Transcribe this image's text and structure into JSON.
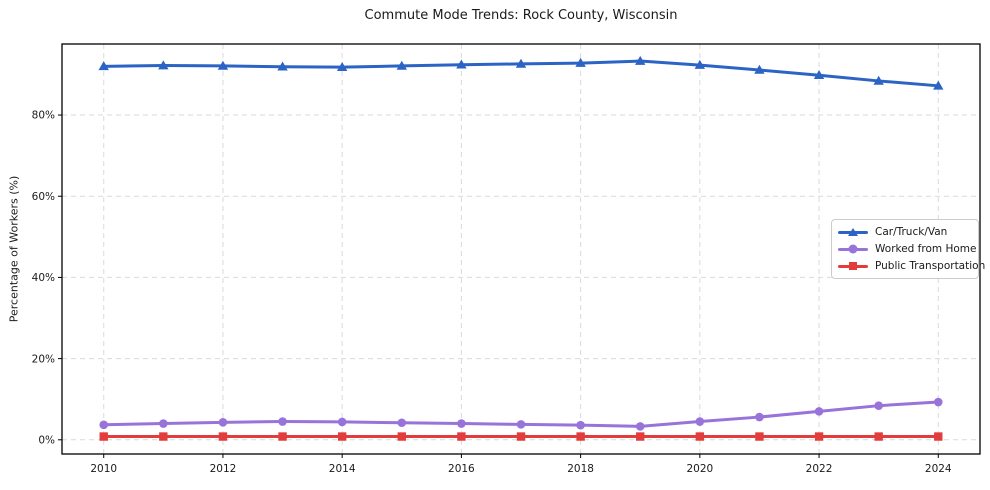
{
  "figure": {
    "title": "Commute Mode Trends: Rock County, Wisconsin",
    "background_color": "#ffffff",
    "frame_color": "#000000",
    "grid_color": "#d9d9d9",
    "text_color": "#1a1a1a"
  },
  "chart_data": {
    "type": "line",
    "title": "Commute Mode Trends: Rock County, Wisconsin",
    "xlabel": "",
    "ylabel": "Percentage of Workers (%)",
    "grid": true,
    "legend_position": "right-middle",
    "x": [
      2010,
      2011,
      2012,
      2013,
      2014,
      2015,
      2016,
      2017,
      2018,
      2019,
      2020,
      2021,
      2022,
      2023,
      2024
    ],
    "series": [
      {
        "name": "Car/Truck/Van",
        "color": "#2b64c5",
        "marker": "triangle",
        "values": [
          92.0,
          92.2,
          92.1,
          91.9,
          91.8,
          92.1,
          92.4,
          92.6,
          92.8,
          93.3,
          92.3,
          91.1,
          89.8,
          88.4,
          87.2
        ]
      },
      {
        "name": "Worked from Home",
        "color": "#9873d9",
        "marker": "circle",
        "values": [
          3.7,
          4.0,
          4.3,
          4.5,
          4.4,
          4.2,
          4.0,
          3.8,
          3.6,
          3.3,
          4.5,
          5.6,
          7.0,
          8.4,
          9.3
        ]
      },
      {
        "name": "Public Transportation",
        "color": "#e23c3c",
        "marker": "square",
        "values": [
          0.8,
          0.8,
          0.8,
          0.8,
          0.8,
          0.8,
          0.8,
          0.8,
          0.8,
          0.8,
          0.8,
          0.8,
          0.8,
          0.8,
          0.8
        ]
      }
    ],
    "x_ticks": {
      "values": [
        2010,
        2012,
        2014,
        2016,
        2018,
        2020,
        2022,
        2024
      ],
      "labels": [
        "2010",
        "2012",
        "2014",
        "2016",
        "2018",
        "2020",
        "2022",
        "2024"
      ]
    },
    "y_ticks": {
      "values": [
        0,
        20,
        40,
        60,
        80
      ],
      "labels": [
        "0%",
        "20%",
        "40%",
        "60%",
        "80%"
      ]
    },
    "xlim": [
      2009.3,
      2024.7
    ],
    "ylim": [
      -3.5,
      97.5
    ]
  }
}
